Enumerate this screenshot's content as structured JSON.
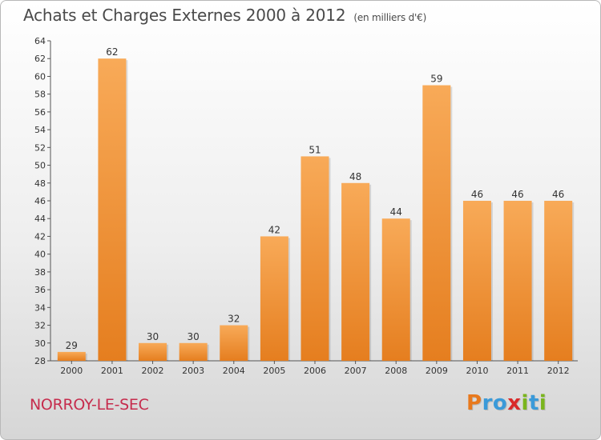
{
  "title": "Achats et Charges Externes 2000 à 2012",
  "unit_label": "(en milliers d'€)",
  "town": "NORROY-LE-SEC",
  "logo": {
    "text": "Proxiti",
    "letters": [
      "P",
      "r",
      "o",
      "x",
      "i",
      "t",
      "i"
    ],
    "colors": [
      "#e8791d",
      "#3a9ad9",
      "#3a9ad9",
      "#d92a2a",
      "#7ab51d",
      "#3a9ad9",
      "#7ab51d"
    ]
  },
  "colors": {
    "bar_top": "#f8aa58",
    "bar_bottom": "#e57e1f",
    "title": "#4a4a4a",
    "town": "#c62c4d"
  },
  "chart_data": {
    "type": "bar",
    "title": "Achats et Charges Externes 2000 à 2012",
    "subtitle": "(en milliers d'€)",
    "xlabel": "",
    "ylabel": "",
    "categories": [
      "2000",
      "2001",
      "2002",
      "2003",
      "2004",
      "2005",
      "2006",
      "2007",
      "2008",
      "2009",
      "2010",
      "2011",
      "2012"
    ],
    "values": [
      29,
      62,
      30,
      30,
      32,
      42,
      51,
      48,
      44,
      59,
      46,
      46,
      46
    ],
    "ylim": [
      28,
      64
    ],
    "yticks": [
      28,
      30,
      32,
      34,
      36,
      38,
      40,
      42,
      44,
      46,
      48,
      50,
      52,
      54,
      56,
      58,
      60,
      62,
      64
    ],
    "grid": false,
    "legend": "none"
  }
}
